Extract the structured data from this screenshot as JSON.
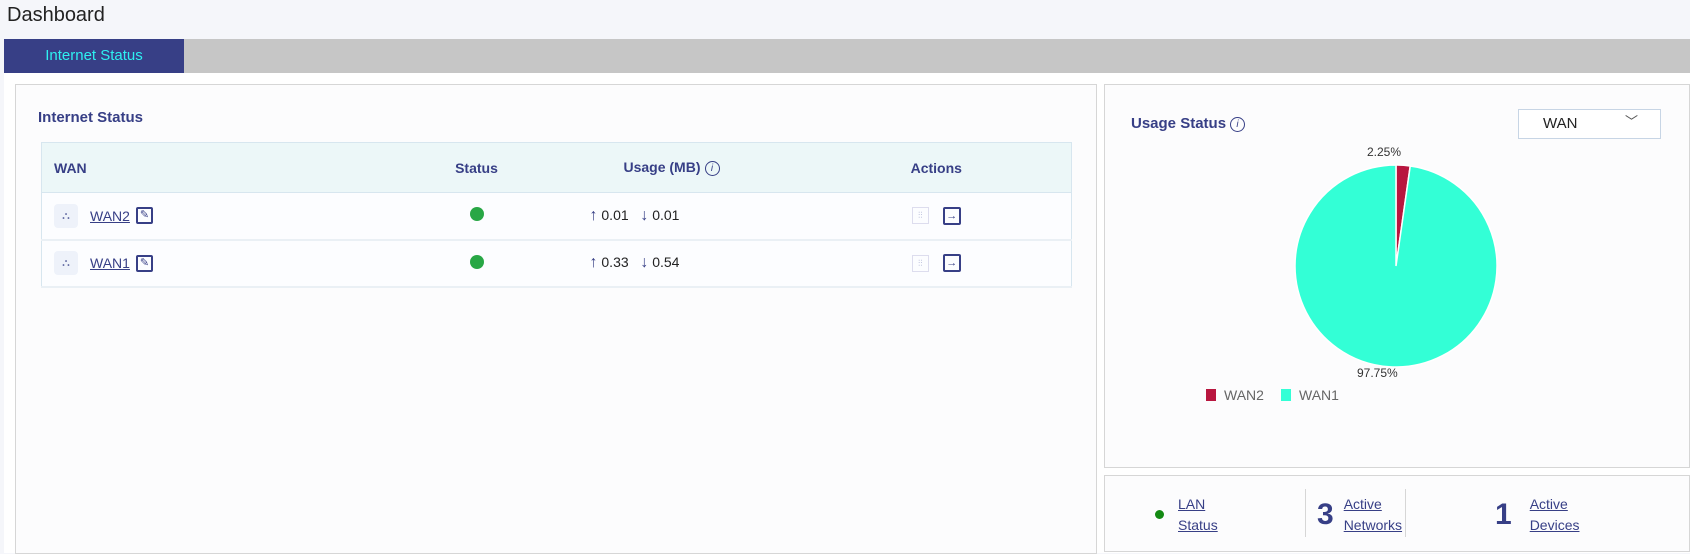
{
  "page_title": "Dashboard",
  "tabs": [
    {
      "label": "Internet Status",
      "active": true
    }
  ],
  "internet_status": {
    "title": "Internet Status",
    "columns": [
      "WAN",
      "Status",
      "Usage (MB)",
      "Actions"
    ],
    "rows": [
      {
        "name": "WAN2",
        "status": "online",
        "up": "0.01",
        "down": "0.01"
      },
      {
        "name": "WAN1",
        "status": "online",
        "up": "0.33",
        "down": "0.54"
      }
    ]
  },
  "usage_status": {
    "title": "Usage Status",
    "dropdown": "WAN",
    "chart_data": {
      "type": "pie",
      "categories": [
        "WAN2",
        "WAN1"
      ],
      "values": [
        2.25,
        97.75
      ],
      "labels": [
        "2.25%",
        "97.75%"
      ],
      "colors": [
        "#b8163f",
        "#33ffd6"
      ],
      "legend": "bottom"
    }
  },
  "summary": {
    "lan": {
      "label1": "LAN",
      "label2": "Status",
      "color": "#138a13"
    },
    "networks": {
      "count": "3",
      "label1": "Active",
      "label2": "Networks"
    },
    "devices": {
      "count": "1",
      "label1": "Active",
      "label2": "Devices"
    }
  },
  "colors": {
    "accent": "#373f86",
    "tab_text": "#2ef0f0",
    "online": "#28a745"
  }
}
